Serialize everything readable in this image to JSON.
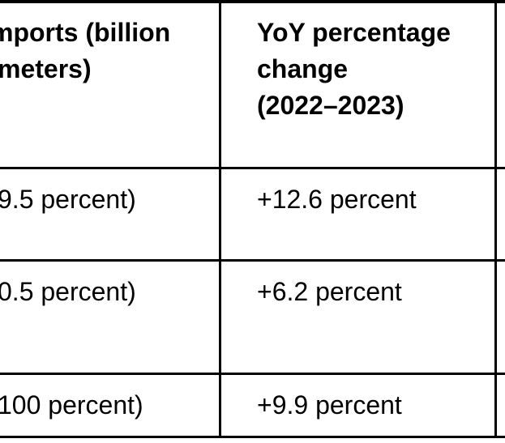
{
  "table": {
    "description": "Cropped document table of imports and year-over-year percentage change",
    "colors": {
      "border": "#000000",
      "text": "#000000",
      "background": "#ffffff"
    },
    "columns": [
      {
        "header": "mports (billion\nmeters)"
      },
      {
        "header": "YoY percentage\nchange\n(2022–2023)"
      },
      {
        "header": ""
      }
    ],
    "rows": [
      {
        "col1": "9.5 percent)",
        "col2": "+12.6 percent",
        "col3": ""
      },
      {
        "col1": "0.5 percent)",
        "col2": "+6.2 percent",
        "col3": ""
      },
      {
        "col1": "100 percent)",
        "col2": "+9.9 percent",
        "col3": ""
      }
    ]
  }
}
